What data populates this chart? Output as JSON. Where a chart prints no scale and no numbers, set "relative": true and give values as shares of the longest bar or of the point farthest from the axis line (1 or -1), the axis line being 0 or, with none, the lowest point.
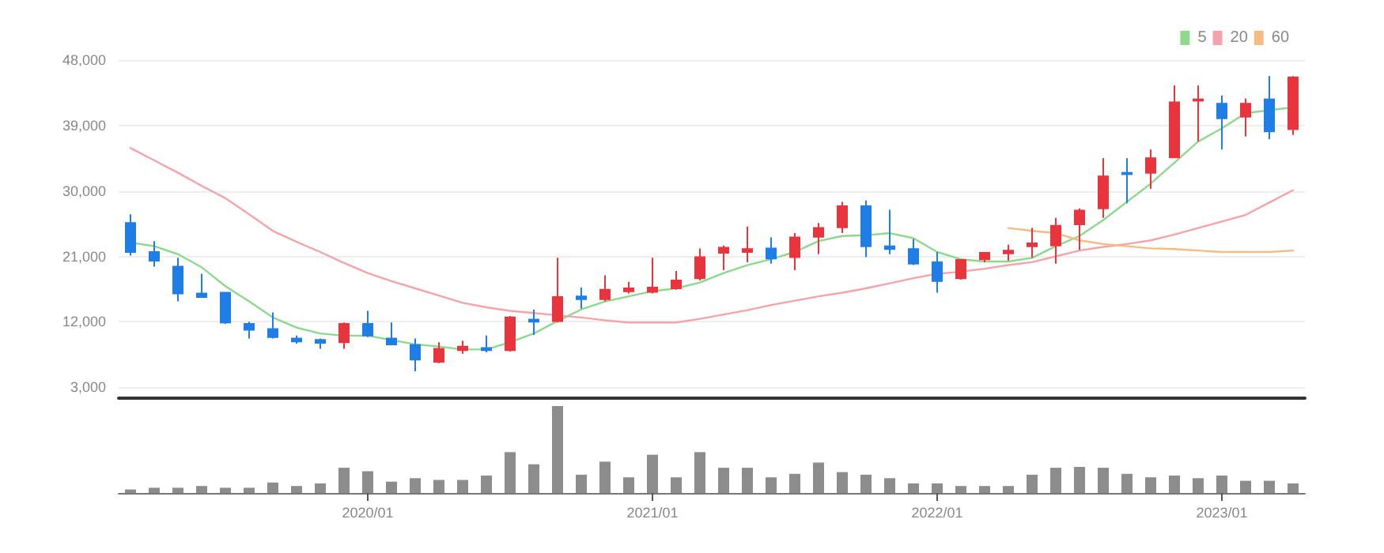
{
  "chart_data": [
    {
      "type": "candlestick",
      "categories": [
        null,
        null,
        null,
        null,
        null,
        null,
        null,
        null,
        null,
        null,
        null,
        null,
        null,
        null,
        null,
        null,
        null,
        null,
        null,
        null,
        null,
        null,
        null,
        null,
        null,
        null,
        null,
        null,
        null,
        null,
        null,
        null,
        null,
        null,
        null,
        null,
        null,
        null,
        null,
        null,
        null,
        null,
        null,
        null,
        null,
        null,
        null,
        null,
        null,
        null
      ],
      "ohlc": [
        [
          25600,
          26800,
          21100,
          21600
        ],
        [
          21600,
          23100,
          19600,
          20400
        ],
        [
          19600,
          20800,
          14800,
          15900
        ],
        [
          15900,
          18600,
          15300,
          15400
        ],
        [
          16000,
          16100,
          11700,
          11900
        ],
        [
          11700,
          12000,
          9700,
          10900
        ],
        [
          11000,
          13300,
          9700,
          9900
        ],
        [
          9700,
          10100,
          9000,
          9300
        ],
        [
          9500,
          9700,
          8300,
          9100
        ],
        [
          9200,
          11900,
          8300,
          11700
        ],
        [
          11700,
          13500,
          9900,
          10100
        ],
        [
          9700,
          11900,
          8800,
          8900
        ],
        [
          8800,
          9700,
          5200,
          6800
        ],
        [
          6500,
          9200,
          6300,
          8300
        ],
        [
          8100,
          9400,
          7600,
          8600
        ],
        [
          8400,
          10100,
          7800,
          8100
        ],
        [
          8100,
          12800,
          7900,
          12600
        ],
        [
          12300,
          13700,
          10200,
          12000
        ],
        [
          12100,
          20800,
          11900,
          15400
        ],
        [
          15500,
          16700,
          13800,
          15100
        ],
        [
          15100,
          18400,
          14800,
          16400
        ],
        [
          16200,
          17500,
          15900,
          16600
        ],
        [
          16100,
          20800,
          15900,
          16700
        ],
        [
          16600,
          19000,
          16400,
          17700
        ],
        [
          18000,
          22100,
          17700,
          20900
        ],
        [
          21500,
          22500,
          19100,
          22200
        ],
        [
          21600,
          25100,
          20200,
          22000
        ],
        [
          22100,
          23600,
          20000,
          20700
        ],
        [
          20900,
          24200,
          19100,
          23600
        ],
        [
          23700,
          25600,
          21300,
          24900
        ],
        [
          25000,
          28500,
          24200,
          27900
        ],
        [
          27900,
          28700,
          20900,
          22400
        ],
        [
          22400,
          27400,
          21300,
          22000
        ],
        [
          22000,
          23400,
          19800,
          20000
        ],
        [
          20200,
          21600,
          16000,
          17600
        ],
        [
          18000,
          20600,
          17800,
          20500
        ],
        [
          20600,
          21600,
          20200,
          21500
        ],
        [
          21400,
          22600,
          20400,
          21800
        ],
        [
          22400,
          24900,
          20800,
          22800
        ],
        [
          22500,
          26300,
          20000,
          25200
        ],
        [
          25400,
          27600,
          21900,
          27300
        ],
        [
          27600,
          34500,
          26300,
          32000
        ],
        [
          32500,
          34500,
          28300,
          32300
        ],
        [
          32500,
          35700,
          30300,
          34500
        ],
        [
          34600,
          44500,
          34500,
          42200
        ],
        [
          42400,
          44500,
          36800,
          42600
        ],
        [
          42000,
          43100,
          35700,
          40000
        ],
        [
          40200,
          42700,
          37500,
          42000
        ],
        [
          42600,
          45800,
          37100,
          38200
        ],
        [
          38500,
          45800,
          37700,
          45600
        ]
      ],
      "series": [
        {
          "name": "5",
          "type": "line",
          "color": "#8ed88e",
          "values": [
            22900,
            22400,
            21300,
            19500,
            16900,
            14800,
            12600,
            11200,
            10400,
            10100,
            10100,
            9500,
            8900,
            8600,
            8200,
            8200,
            9200,
            10400,
            12100,
            13700,
            14800,
            15500,
            16200,
            16600,
            17400,
            18700,
            19800,
            20600,
            21600,
            23100,
            23800,
            23900,
            24200,
            23500,
            21600,
            20600,
            20300,
            20300,
            20800,
            22400,
            23800,
            26000,
            28500,
            31000,
            33900,
            36800,
            38600,
            40700,
            41100,
            41500
          ]
        },
        {
          "name": "20",
          "type": "line",
          "color": "#f4a3a8",
          "values": [
            35900,
            34200,
            32500,
            30700,
            29000,
            26800,
            24500,
            23000,
            21600,
            20100,
            18700,
            17600,
            16600,
            15600,
            14600,
            14000,
            13500,
            13200,
            12900,
            12600,
            12200,
            11900,
            11900,
            11900,
            12400,
            13000,
            13600,
            14300,
            14900,
            15500,
            16000,
            16600,
            17300,
            18000,
            18600,
            18900,
            19300,
            19800,
            20200,
            21000,
            21800,
            22300,
            22700,
            23200,
            24000,
            24900,
            25800,
            26700,
            28400,
            30100
          ]
        },
        {
          "name": "60",
          "type": "line",
          "color": "#f5bb80",
          "values": [
            null,
            null,
            null,
            null,
            null,
            null,
            null,
            null,
            null,
            null,
            null,
            null,
            null,
            null,
            null,
            null,
            null,
            null,
            null,
            null,
            null,
            null,
            null,
            null,
            null,
            null,
            null,
            null,
            null,
            null,
            null,
            null,
            null,
            null,
            null,
            null,
            null,
            24900,
            24500,
            24200,
            23200,
            22700,
            22400,
            22100,
            22000,
            21800,
            21600,
            21600,
            21600,
            21800
          ]
        }
      ],
      "ylim": [
        1500,
        48000
      ],
      "yticks": [
        {
          "value": 3000,
          "label": "3,000"
        },
        {
          "value": 12000,
          "label": "12,000"
        },
        {
          "value": 21000,
          "label": "21,000"
        },
        {
          "value": 30000,
          "label": "30,000"
        },
        {
          "value": 39000,
          "label": "39,000"
        },
        {
          "value": 48000,
          "label": "48,000"
        }
      ],
      "tick_labels": "y",
      "grid": "y",
      "legend": "top right"
    },
    {
      "type": "bar",
      "relative": true,
      "color": "#8c8c8c",
      "categories": [
        null,
        null,
        null,
        null,
        null,
        null,
        null,
        null,
        null,
        null,
        "2020/01",
        null,
        null,
        null,
        null,
        null,
        null,
        null,
        null,
        null,
        null,
        null,
        "2021/01",
        null,
        null,
        null,
        null,
        null,
        null,
        null,
        null,
        null,
        null,
        null,
        "2022/01",
        null,
        null,
        null,
        null,
        null,
        null,
        null,
        null,
        null,
        null,
        null,
        "2023/01",
        null,
        null,
        null
      ],
      "values": [
        0.04,
        0.06,
        0.06,
        0.08,
        0.06,
        0.06,
        0.12,
        0.08,
        0.11,
        0.29,
        0.25,
        0.13,
        0.17,
        0.15,
        0.15,
        0.2,
        0.47,
        0.33,
        1,
        0.21,
        0.36,
        0.18,
        0.44,
        0.18,
        0.47,
        0.29,
        0.29,
        0.18,
        0.22,
        0.35,
        0.24,
        0.21,
        0.17,
        0.11,
        0.11,
        0.08,
        0.08,
        0.08,
        0.21,
        0.29,
        0.3,
        0.29,
        0.22,
        0.18,
        0.2,
        0.17,
        0.2,
        0.14,
        0.14,
        0.11
      ],
      "tick_labels": "x"
    }
  ]
}
